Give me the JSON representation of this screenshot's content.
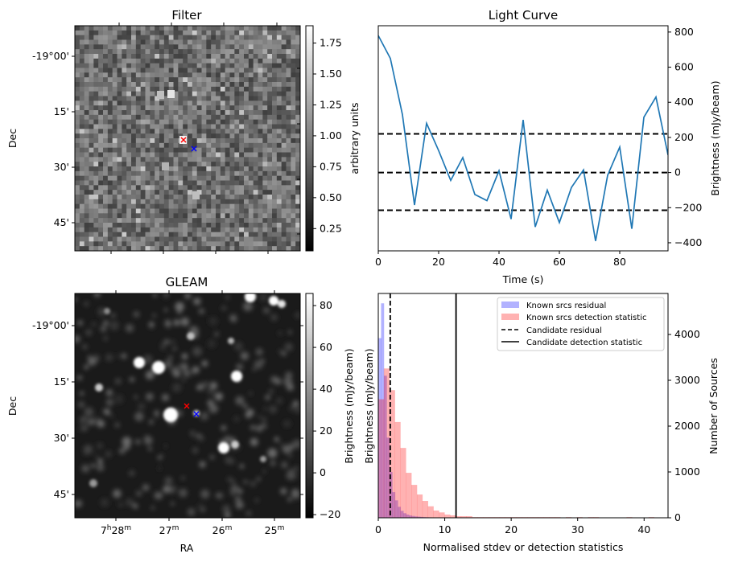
{
  "panels": {
    "filter": {
      "title": "Filter",
      "ylabel": "Dec",
      "cbar_label": "arbitrary units",
      "dec_ticks": [
        "-19°00'",
        "15'",
        "30'",
        "45'"
      ],
      "cbar_ticks": [
        0.25,
        0.5,
        0.75,
        1.0,
        1.25,
        1.5,
        1.75
      ],
      "cbar_tick_labels": [
        "0.25",
        "0.50",
        "0.75",
        "1.00",
        "1.25",
        "1.50",
        "1.75"
      ],
      "cbar_range": [
        0.07,
        1.89
      ]
    },
    "gleam": {
      "title": "GLEAM",
      "ylabel": "Dec",
      "xlabel": "RA",
      "cbar_label": "Brightness (mJy/beam)",
      "dec_ticks": [
        "-19°00'",
        "15'",
        "30'",
        "45'"
      ],
      "ra_ticks": [
        "7h28m",
        "27m",
        "26m",
        "25m"
      ],
      "cbar_ticks": [
        -20,
        0,
        20,
        40,
        60,
        80
      ],
      "cbar_tick_labels": [
        "−20",
        "0",
        "20",
        "40",
        "60",
        "80"
      ],
      "cbar_range": [
        -21.5,
        85.8
      ]
    }
  },
  "markers": {
    "candidate_color": "#ff0000",
    "known_color": "#0000ff"
  },
  "chart_data": [
    {
      "type": "line",
      "title": "Light Curve",
      "xlabel": "Time (s)",
      "ylabel": "Brightness (mJy/beam)",
      "xlim": [
        0,
        96
      ],
      "ylim": [
        -446,
        836
      ],
      "xticks": [
        0,
        20,
        40,
        60,
        80
      ],
      "yticks": [
        -400,
        -200,
        0,
        200,
        400,
        600,
        800
      ],
      "ytick_labels": [
        "−400",
        "−200",
        "0",
        "200",
        "400",
        "600",
        "800"
      ],
      "x": [
        0,
        4,
        8,
        12,
        16,
        20,
        24,
        28,
        32,
        36,
        40,
        44,
        48,
        52,
        56,
        60,
        64,
        68,
        72,
        76,
        80,
        84,
        88,
        92,
        96
      ],
      "y": [
        780,
        650,
        330,
        -185,
        280,
        125,
        -45,
        85,
        -125,
        -160,
        10,
        -265,
        300,
        -310,
        -100,
        -285,
        -85,
        15,
        -390,
        -15,
        145,
        -320,
        315,
        430,
        100
      ],
      "color": "#1f77b4",
      "hlines": [
        220,
        0,
        -215
      ]
    },
    {
      "type": "bar",
      "xlabel": "Normalised stdev or detection statistics",
      "ylabel_left": "Brightness (mJy/beam)",
      "ylabel_right": "Number of Sources",
      "xlim": [
        0,
        43.6
      ],
      "ylim": [
        0,
        4895
      ],
      "xticks": [
        0,
        10,
        20,
        30,
        40
      ],
      "yticks": [
        0,
        1000,
        2000,
        3000,
        4000
      ],
      "series": [
        {
          "name": "Known srcs residual",
          "color": "#0000ff",
          "alpha": 0.3,
          "bin_width": 0.42,
          "values": [
            3920,
            4680,
            3100,
            1750,
            1000,
            560,
            380,
            240,
            150,
            100,
            70,
            50,
            40,
            30,
            25,
            20,
            15,
            12,
            10,
            8,
            6,
            5,
            4,
            3,
            3,
            2,
            2,
            2,
            1,
            1
          ]
        },
        {
          "name": "Known srcs detection statistic",
          "color": "#ff0000",
          "alpha": 0.3,
          "bin_width": 0.83,
          "values": [
            2587,
            3258,
            2785,
            2090,
            1524,
            981,
            718,
            508,
            368,
            251,
            158,
            117,
            70,
            53,
            35,
            35,
            35,
            15,
            15,
            15,
            15,
            15,
            15,
            15,
            15,
            15,
            15,
            15,
            15,
            15,
            15,
            15,
            15,
            0,
            15,
            0,
            15,
            0,
            15,
            15,
            0,
            0,
            0,
            0,
            0,
            15,
            0,
            0,
            0,
            15
          ]
        }
      ],
      "vlines": [
        {
          "name": "Candidate residual",
          "x": 1.8,
          "style": "dashed"
        },
        {
          "name": "Candidate detection statistic",
          "x": 11.7,
          "style": "solid"
        }
      ],
      "legend": [
        "Known srcs residual",
        "Known srcs detection statistic",
        "Candidate residual",
        "Candidate detection statistic"
      ],
      "legend_position": "top-right"
    }
  ]
}
